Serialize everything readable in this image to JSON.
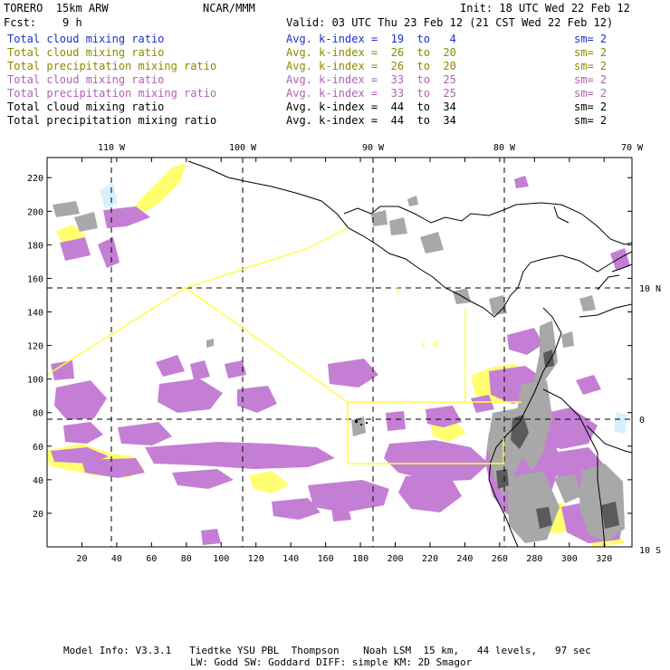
{
  "header": {
    "model": "TORERO  15km ARW",
    "center": "NCAR/MMM",
    "init": "Init: 18 UTC Wed 22 Feb 12",
    "fcst": "Fcst:    9 h",
    "valid": "Valid: 03 UTC Thu 23 Feb 12 (21 CST Wed 22 Feb 12)"
  },
  "legend": [
    {
      "field": "Total cloud mixing ratio",
      "kindex": "Avg. k-index =  19  to   4",
      "sm": "sm= 2",
      "color": "#1f2fd0"
    },
    {
      "field": "Total cloud mixing ratio",
      "kindex": "Avg. k-index =  26  to  20",
      "sm": "sm= 2",
      "color": "#8a8a00"
    },
    {
      "field": "Total precipitation mixing ratio",
      "kindex": "Avg. k-index =  26  to  20",
      "sm": "sm= 2",
      "color": "#8a8a00"
    },
    {
      "field": "Total cloud mixing ratio",
      "kindex": "Avg. k-index =  33  to  25",
      "sm": "sm= 2",
      "color": "#b35fb3"
    },
    {
      "field": "Total precipitation mixing ratio",
      "kindex": "Avg. k-index =  33  to  25",
      "sm": "sm= 2",
      "color": "#b35fb3"
    },
    {
      "field": "Total cloud mixing ratio",
      "kindex": "Avg. k-index =  44  to  34",
      "sm": "sm= 2",
      "color": "#000000"
    },
    {
      "field": "Total precipitation mixing ratio",
      "kindex": "Avg. k-index =  44  to  34",
      "sm": "sm= 2",
      "color": "#000000"
    }
  ],
  "axes": {
    "top_ticks": [
      "110 W",
      "100 W",
      "90 W",
      "80 W",
      "70 W"
    ],
    "left_ticks": [
      "220",
      "200",
      "180",
      "160",
      "140",
      "120",
      "100",
      "80",
      "60",
      "40",
      "20"
    ],
    "bottom_ticks": [
      "20",
      "40",
      "60",
      "80",
      "100",
      "120",
      "140",
      "160",
      "180",
      "200",
      "220",
      "240",
      "260",
      "280",
      "300",
      "320"
    ],
    "right_ticks": [
      "10 N",
      "0",
      "10 S"
    ]
  },
  "map_labels": {
    "cr": "C  R",
    "one": "1"
  },
  "footer": {
    "line1": "Model Info: V3.3.1   Tiedtke YSU PBL  Thompson    Noah LSM  15 km,   44 levels,   97 sec",
    "line2": "LW: Godd SW: Goddard DIFF: simple KM: 2D Smagor"
  },
  "colors": {
    "cyan": "#d6f0ff",
    "yellow": "#ffff70",
    "purple": "#c47fd4",
    "gray": "#a8a8a8",
    "darkgray": "#5a5a5a",
    "grid": "#000000",
    "boundary": "#ffff3a"
  }
}
